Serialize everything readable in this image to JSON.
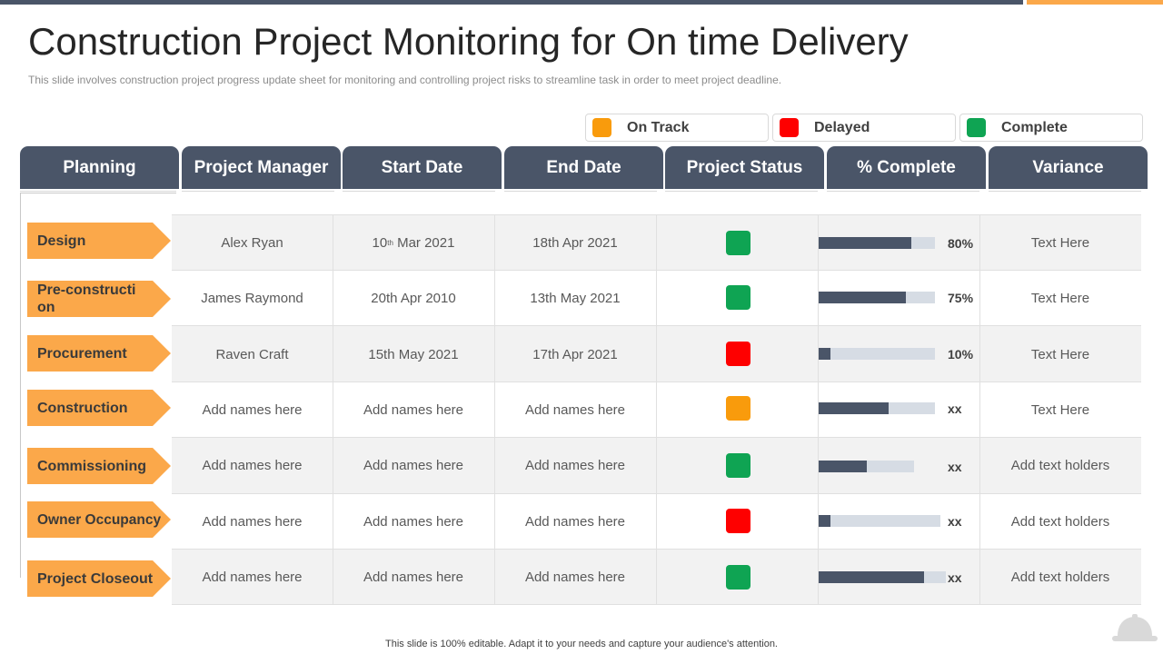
{
  "header": {
    "title": "Construction Project Monitoring for On time Delivery",
    "subtitle": "This slide involves  construction project progress update sheet for monitoring and controlling project risks to streamline task in order to meet project deadline."
  },
  "legend": [
    {
      "label": "On Track",
      "color": "#f99b0c"
    },
    {
      "label": "Delayed",
      "color": "#fe0000"
    },
    {
      "label": "Complete",
      "color": "#0fa453"
    }
  ],
  "table": {
    "columns": [
      "Planning",
      "Project Manager",
      "Start Date",
      "End Date",
      "Project Status",
      "% Complete",
      "Variance"
    ],
    "rows": [
      {
        "phase": "Design",
        "manager": "Alex Ryan",
        "start_day": "10",
        "start_sup": "th",
        "start_rest": " Mar 2021",
        "end": "18th Apr 2021",
        "status": "Complete",
        "status_color": "#0fa453",
        "progress": 0.8,
        "percent_label": "80%",
        "variance": "Text Here"
      },
      {
        "phase": "Pre-construction",
        "manager": "James Raymond",
        "start": "20th Apr 2010",
        "end": "13th May 2021",
        "status": "Complete",
        "status_color": "#0fa453",
        "progress": 0.75,
        "percent_label": "75%",
        "variance": "Text Here"
      },
      {
        "phase": "Procurement",
        "manager": "Raven Craft",
        "start": "15th May 2021",
        "end": "17th Apr 2021",
        "status": "Delayed",
        "status_color": "#fe0000",
        "progress": 0.1,
        "percent_label": "10%",
        "variance": "Text Here"
      },
      {
        "phase": "Construction",
        "manager": "Add names here",
        "start": "Add names here",
        "end": "Add names here",
        "status": "On Track",
        "status_color": "#f99b0c",
        "progress": 0.6,
        "percent_label": "xx",
        "variance": "Text Here"
      },
      {
        "phase": "Commissioning",
        "manager": "Add names here",
        "start": "Add names here",
        "end": "Add names here",
        "status": "Complete",
        "status_color": "#0fa453",
        "progress": 0.5,
        "percent_label": "xx",
        "variance": "Add text holders"
      },
      {
        "phase": "Owner Occupancy",
        "manager": "Add names here",
        "start": "Add names here",
        "end": "Add names here",
        "status": "Delayed",
        "status_color": "#fe0000",
        "progress": 0.1,
        "percent_label": "xx",
        "variance": "Add text holders"
      },
      {
        "phase": "Project Closeout",
        "manager": "Add names here",
        "start": "Add names here",
        "end": "Add names here",
        "status": "Complete",
        "status_color": "#0fa453",
        "progress": 0.83,
        "percent_label": "xx",
        "variance": "Add text holders"
      }
    ]
  },
  "footer": {
    "text": "This slide is 100% editable. Adapt it to your needs and capture your audience's attention."
  },
  "colors": {
    "header_bg": "#4a5568",
    "accent": "#fba84a",
    "bar_track": "#d6dce4"
  },
  "icons": [
    "hard-hat-icon"
  ]
}
